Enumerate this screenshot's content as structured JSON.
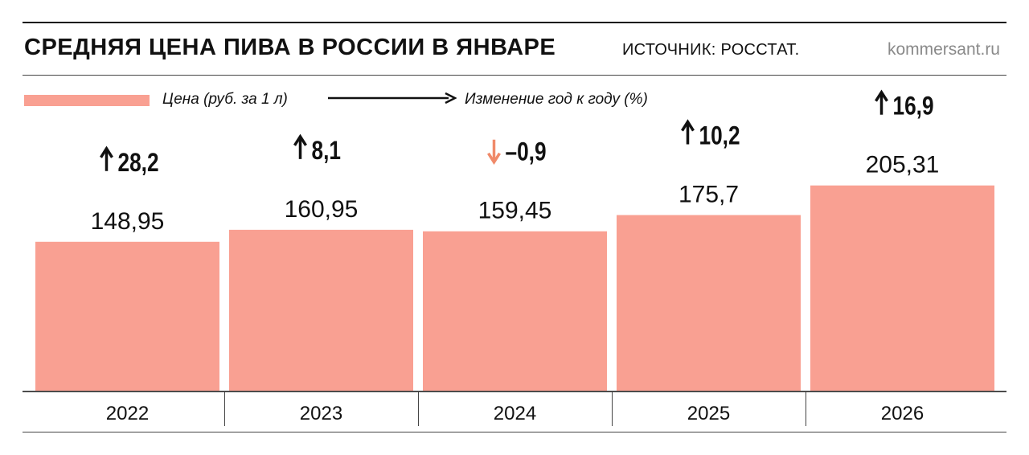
{
  "header": {
    "title": "СРЕДНЯЯ ЦЕНА ПИВА В РОССИИ В ЯНВАРЕ",
    "source": "ИСТОЧНИК: РОССТАТ.",
    "site": "kommersant.ru"
  },
  "legend": {
    "price_label": "Цена (руб. за 1 л)",
    "change_label": "Изменение год к году (%)"
  },
  "colors": {
    "bar": "#f9a092",
    "up_arrow": "#111111",
    "down_arrow": "#f08a6a",
    "text": "#111111"
  },
  "chart_data": {
    "type": "bar",
    "categories": [
      "2022",
      "2023",
      "2024",
      "2025",
      "2026"
    ],
    "values": [
      148.95,
      160.95,
      159.45,
      175.7,
      205.31
    ],
    "value_labels": [
      "148,95",
      "160,95",
      "159,45",
      "175,7",
      "205,31"
    ],
    "changes": [
      28.2,
      8.1,
      -0.9,
      10.2,
      16.9
    ],
    "change_labels": [
      "28,2",
      "8,1",
      "–0,9",
      "10,2",
      "16,9"
    ],
    "title": "СРЕДНЯЯ ЦЕНА ПИВА В РОССИИ В ЯНВАРЕ",
    "ylim": [
      0,
      230
    ],
    "grid": false
  }
}
